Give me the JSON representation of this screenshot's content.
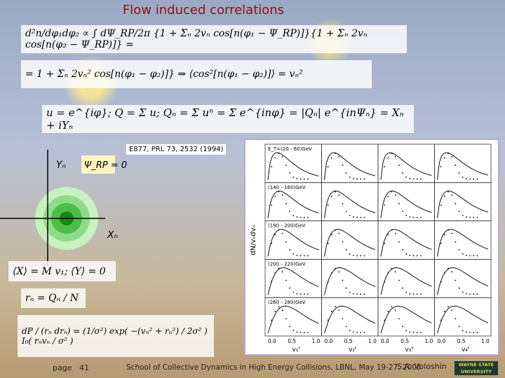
{
  "title": "Flow induced correlations",
  "equations": {
    "pair": "d²n/dφ₁dφ₂ ∝ ∫ dΨ_RP/2π {1 + Σₙ 2vₙ cos[n(φ₁ − Ψ_RP)]}{1 + Σₙ 2vₙ cos[n(φ₂ − Ψ_RP)]} =",
    "pair_result": "= 1 + Σₙ 2vₙ² cos[n(φ₁ − φ₂)]}   ⇒   ⟨cos²[n(φ₁ − φ₂)]⟩ = vₙ²",
    "q_vector": "u = e^{iφ};   Q = Σ u;   Qₙ = Σ uⁿ = Σ e^{inφ} = |Qₙ| e^{inΨₙ} = Xₙ + iYₙ",
    "mean": "⟨X⟩ = M v₁;  ⟨Y⟩ = 0",
    "r_def": "rₙ = Qₙ / N",
    "distribution": "dP / (rₙ drₙ) = (1/σ²) exp( −(vₙ² + rₙ²) / 2σ² ) I₀( rₙvₙ / σ² )"
  },
  "diagram": {
    "y_axis": "Yₙ",
    "psi": "Ψ_RP = 0",
    "x_axis": "Xₙ"
  },
  "plot": {
    "reference": "E877, PRL 73, 2532 (1994)",
    "y_label": "dN/vₙdvₙ",
    "row_labels": [
      "E_T=(20 - 60)GeV",
      "(140 - 160)GeV",
      "(180 - 200)GeV",
      "(200 - 220)GeV",
      "(260 - 280)GeV"
    ],
    "columns": [
      {
        "label": "v₁ᶠ",
        "ticks": [
          "0.0",
          "0.5",
          "1.0"
        ]
      },
      {
        "label": "v₂ᶠ",
        "ticks": [
          "0.0",
          "0.5",
          "1.0"
        ]
      },
      {
        "label": "v₃ᶠ",
        "ticks": [
          "0.0",
          "0.5",
          "1.0"
        ]
      },
      {
        "label": "v₄ᶠ",
        "ticks": [
          "0.0",
          "0.5",
          "1.0"
        ]
      }
    ]
  },
  "footer": {
    "page_label": "page",
    "page_number": "41",
    "event": "School of Collective Dynamics in High Energy Collisions, LBNL, May 19-27, 2005",
    "author": "S.A. Voloshin",
    "logo": [
      "WAYNE STATE",
      "UNIVERSITY"
    ]
  }
}
